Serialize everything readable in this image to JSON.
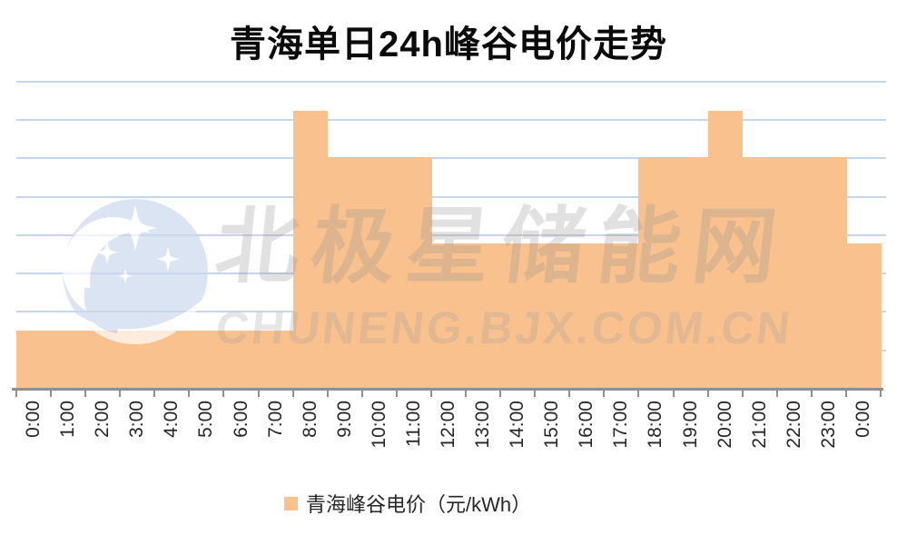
{
  "title": "青海单日24h峰谷电价走势",
  "watermark": {
    "site_name": "北极星储能网",
    "site_url": "CHUNENG.BJX.COM.CN",
    "logo": "bjx-moon-stars-logo"
  },
  "legend": {
    "label": "青海峰谷电价（元/kWh）",
    "marker_color": "#F9C18D"
  },
  "colors": {
    "bar_fill": "#F9C18D",
    "gridline": "#C7D5EB",
    "axis_line": "#8F8F8F",
    "title_text": "#0A0A0A",
    "axis_label_text": "#262626"
  },
  "chart_data": {
    "type": "bar",
    "title": "青海单日24h峰谷电价走势",
    "xlabel": "",
    "ylabel": "",
    "categories": [
      "0:00",
      "1:00",
      "2:00",
      "3:00",
      "4:00",
      "5:00",
      "6:00",
      "7:00",
      "8:00",
      "9:00",
      "10:00",
      "11:00",
      "12:00",
      "13:00",
      "14:00",
      "15:00",
      "16:00",
      "17:00",
      "18:00",
      "19:00",
      "20:00",
      "21:00",
      "22:00",
      "23:00",
      "0:00"
    ],
    "series": [
      {
        "name": "青海峰谷电价（元/kWh）",
        "color": "#F9C18D",
        "values": [
          0.1508,
          0.1508,
          0.1508,
          0.1508,
          0.1508,
          0.1508,
          0.1508,
          0.1508,
          0.724,
          0.6034,
          0.6034,
          0.6034,
          0.3771,
          0.3771,
          0.3771,
          0.3771,
          0.3771,
          0.3771,
          0.6034,
          0.6034,
          0.724,
          0.6034,
          0.6034,
          0.6034,
          0.3771
        ]
      }
    ],
    "price_levels": {
      "valley": 0.1508,
      "flat": 0.3771,
      "peak": 0.6034,
      "sharp_peak": 0.724
    },
    "ylim": [
      0,
      0.8
    ],
    "grid_step": 0.1,
    "grid": true,
    "y_axis_labels_visible": false,
    "x_label_rotation_deg": 90,
    "legend_position": "bottom"
  }
}
